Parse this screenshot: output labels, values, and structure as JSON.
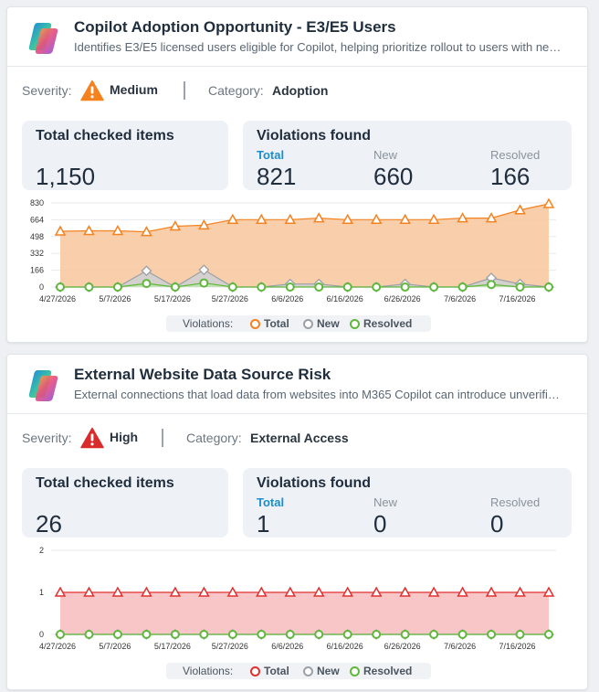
{
  "cards": [
    {
      "title": "Copilot Adoption Opportunity - E3/E5 Users",
      "description": "Identifies E3/E5 licensed users eligible for Copilot, helping prioritize rollout to users with ne…",
      "severity_label": "Severity:",
      "severity": "Medium",
      "severity_color": "#f5811f",
      "category_label": "Category:",
      "category": "Adoption",
      "checked_title": "Total checked items",
      "checked_value": "1,150",
      "violations_title": "Violations found",
      "total_label": "Total",
      "total_value": "821",
      "new_label": "New",
      "new_value": "660",
      "resolved_label": "Resolved",
      "resolved_value": "166",
      "legend": {
        "prefix": "Violations:",
        "total": "Total",
        "new": "New",
        "resolved": "Resolved"
      },
      "chart_data": {
        "type": "area",
        "ylim": [
          0,
          830
        ],
        "y_ticks": [
          "0",
          "166",
          "332",
          "498",
          "664",
          "830"
        ],
        "x_tick_labels": [
          "4/27/2026",
          "5/7/2026",
          "5/17/2026",
          "5/27/2026",
          "6/6/2026",
          "6/16/2026",
          "6/26/2026",
          "7/6/2026",
          "7/16/2026"
        ],
        "x": [
          "4/27/2026",
          "5/2/2026",
          "5/7/2026",
          "5/12/2026",
          "5/17/2026",
          "5/22/2026",
          "5/27/2026",
          "6/1/2026",
          "6/6/2026",
          "6/11/2026",
          "6/16/2026",
          "6/21/2026",
          "6/26/2026",
          "7/1/2026",
          "7/6/2026",
          "7/11/2026",
          "7/16/2026",
          "7/21/2026"
        ],
        "series": [
          {
            "name": "Total",
            "color": "#f5811f",
            "fill": "#f8c79c",
            "values": [
              550,
              555,
              555,
              545,
              600,
              610,
              665,
              665,
              665,
              680,
              665,
              665,
              665,
              665,
              680,
              680,
              760,
              821
            ]
          },
          {
            "name": "New",
            "color": "#9aa0a6",
            "fill": "#cdd0d4",
            "values": [
              0,
              0,
              0,
              160,
              0,
              170,
              0,
              0,
              30,
              30,
              0,
              0,
              30,
              0,
              0,
              90,
              30,
              0
            ]
          },
          {
            "name": "Resolved",
            "color": "#5fb83a",
            "fill": "#bfe3ae",
            "values": [
              0,
              0,
              0,
              35,
              0,
              40,
              0,
              0,
              0,
              0,
              0,
              0,
              0,
              0,
              0,
              25,
              0,
              0
            ]
          }
        ]
      }
    },
    {
      "title": "External Website Data Source Risk",
      "description": "External connections that load data from websites into M365 Copilot can introduce unverifi…",
      "severity_label": "Severity:",
      "severity": "High",
      "severity_color": "#d92b2b",
      "category_label": "Category:",
      "category": "External Access",
      "checked_title": "Total checked items",
      "checked_value": "26",
      "violations_title": "Violations found",
      "total_label": "Total",
      "total_value": "1",
      "new_label": "New",
      "new_value": "0",
      "resolved_label": "Resolved",
      "resolved_value": "0",
      "legend": {
        "prefix": "Violations:",
        "total": "Total",
        "new": "New",
        "resolved": "Resolved"
      },
      "chart_data": {
        "type": "area",
        "ylim": [
          0,
          2
        ],
        "y_ticks": [
          "0",
          "1",
          "2"
        ],
        "x_tick_labels": [
          "4/27/2026",
          "5/7/2026",
          "5/17/2026",
          "5/27/2026",
          "6/6/2026",
          "6/16/2026",
          "6/26/2026",
          "7/6/2026",
          "7/16/2026"
        ],
        "x": [
          "4/27/2026",
          "5/2/2026",
          "5/7/2026",
          "5/12/2026",
          "5/17/2026",
          "5/22/2026",
          "5/27/2026",
          "6/1/2026",
          "6/6/2026",
          "6/11/2026",
          "6/16/2026",
          "6/21/2026",
          "6/26/2026",
          "7/1/2026",
          "7/6/2026",
          "7/11/2026",
          "7/16/2026",
          "7/21/2026"
        ],
        "series": [
          {
            "name": "Total",
            "color": "#e0302f",
            "fill": "#f7bcbc",
            "values": [
              1,
              1,
              1,
              1,
              1,
              1,
              1,
              1,
              1,
              1,
              1,
              1,
              1,
              1,
              1,
              1,
              1,
              1
            ]
          },
          {
            "name": "New",
            "color": "#9aa0a6",
            "fill": "#cdd0d4",
            "values": [
              0,
              0,
              0,
              0,
              0,
              0,
              0,
              0,
              0,
              0,
              0,
              0,
              0,
              0,
              0,
              0,
              0,
              0
            ]
          },
          {
            "name": "Resolved",
            "color": "#5fb83a",
            "fill": "#bfe3ae",
            "values": [
              0,
              0,
              0,
              0,
              0,
              0,
              0,
              0,
              0,
              0,
              0,
              0,
              0,
              0,
              0,
              0,
              0,
              0
            ]
          }
        ]
      }
    }
  ]
}
